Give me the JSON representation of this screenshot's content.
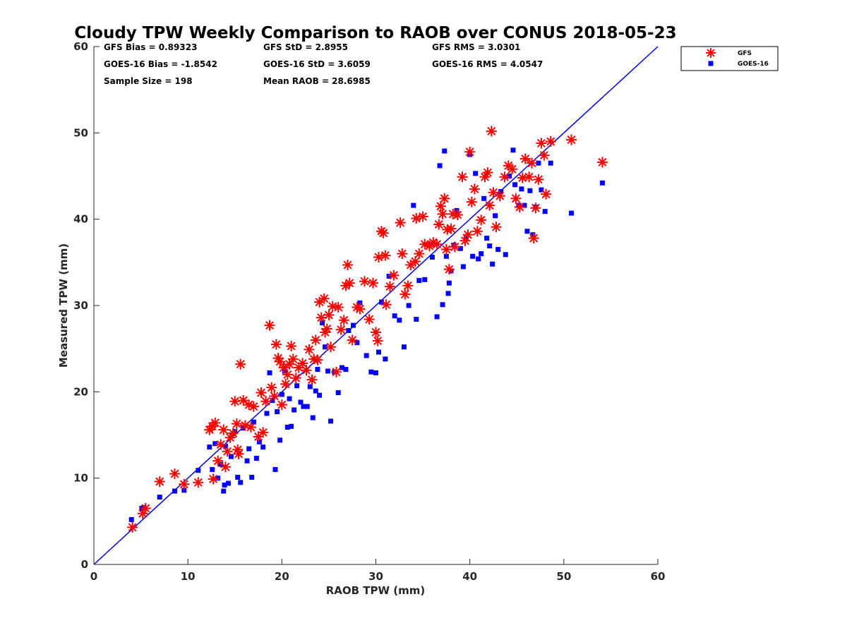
{
  "chart_data": {
    "type": "scatter",
    "title": "Cloudy TPW Weekly Comparison to RAOB over CONUS 2018-05-23",
    "xlabel": "RAOB TPW (mm)",
    "ylabel": "Measured TPW (mm)",
    "xlim": [
      0,
      60
    ],
    "ylim": [
      0,
      60
    ],
    "xticks": [
      0,
      10,
      20,
      30,
      40,
      50,
      60
    ],
    "yticks": [
      0,
      10,
      20,
      30,
      40,
      50,
      60
    ],
    "grid": false,
    "legend_position": "top-right (outside plot)",
    "reference_line": {
      "type": "one-to-one",
      "from": [
        0,
        0
      ],
      "to": [
        60,
        60
      ],
      "color": "#0000ee"
    },
    "stats": [
      "GFS Bias = 0.89323",
      "GFS StD = 2.8955",
      "GFS RMS = 3.0301",
      "GOES-16 Bias = -1.8542",
      "GOES-16 StD = 3.6059",
      "GOES-16 RMS = 4.0547",
      "Sample Size = 198",
      "Mean RAOB = 28.6985"
    ],
    "series": [
      {
        "name": "GFS",
        "marker": "asterisk",
        "color": "#ff0000",
        "points": [
          [
            4.1,
            4.3
          ],
          [
            5.2,
            5.9
          ],
          [
            5.5,
            6.5
          ],
          [
            7.0,
            9.6
          ],
          [
            8.6,
            10.5
          ],
          [
            9.6,
            9.3
          ],
          [
            11.1,
            9.5
          ],
          [
            12.3,
            15.6
          ],
          [
            12.6,
            16.0
          ],
          [
            12.9,
            16.4
          ],
          [
            12.7,
            9.9
          ],
          [
            13.2,
            12.0
          ],
          [
            13.5,
            13.9
          ],
          [
            13.8,
            15.6
          ],
          [
            14.0,
            11.3
          ],
          [
            14.2,
            13.1
          ],
          [
            14.5,
            14.7
          ],
          [
            14.8,
            15.2
          ],
          [
            15.0,
            18.9
          ],
          [
            15.2,
            16.3
          ],
          [
            15.3,
            13.3
          ],
          [
            15.4,
            12.8
          ],
          [
            15.6,
            23.2
          ],
          [
            15.9,
            19.0
          ],
          [
            16.1,
            16.1
          ],
          [
            16.5,
            18.5
          ],
          [
            16.7,
            15.9
          ],
          [
            17.0,
            18.3
          ],
          [
            17.5,
            14.8
          ],
          [
            17.8,
            19.9
          ],
          [
            18.0,
            15.3
          ],
          [
            18.3,
            18.9
          ],
          [
            18.7,
            27.7
          ],
          [
            18.9,
            20.5
          ],
          [
            19.2,
            19.5
          ],
          [
            19.4,
            25.5
          ],
          [
            19.6,
            23.9
          ],
          [
            19.8,
            23.5
          ],
          [
            20.0,
            18.5
          ],
          [
            20.2,
            22.8
          ],
          [
            20.4,
            20.9
          ],
          [
            20.6,
            22.0
          ],
          [
            20.8,
            23.2
          ],
          [
            21.0,
            25.3
          ],
          [
            21.2,
            23.8
          ],
          [
            21.5,
            21.6
          ],
          [
            21.8,
            22.8
          ],
          [
            22.2,
            23.3
          ],
          [
            22.6,
            22.5
          ],
          [
            22.9,
            24.9
          ],
          [
            23.2,
            21.4
          ],
          [
            23.4,
            23.8
          ],
          [
            23.6,
            26.0
          ],
          [
            23.8,
            23.7
          ],
          [
            24.0,
            30.4
          ],
          [
            24.2,
            28.6
          ],
          [
            24.5,
            30.8
          ],
          [
            24.6,
            26.9
          ],
          [
            24.8,
            27.3
          ],
          [
            25.0,
            28.9
          ],
          [
            25.2,
            25.2
          ],
          [
            25.4,
            29.9
          ],
          [
            25.8,
            22.3
          ],
          [
            26.0,
            29.8
          ],
          [
            26.3,
            27.2
          ],
          [
            26.6,
            28.3
          ],
          [
            26.8,
            32.3
          ],
          [
            27.0,
            34.7
          ],
          [
            27.2,
            32.6
          ],
          [
            27.5,
            26.0
          ],
          [
            28.0,
            29.8
          ],
          [
            28.3,
            29.6
          ],
          [
            28.8,
            32.8
          ],
          [
            29.3,
            28.4
          ],
          [
            29.7,
            32.6
          ],
          [
            30.0,
            26.9
          ],
          [
            30.2,
            25.9
          ],
          [
            30.3,
            35.6
          ],
          [
            30.6,
            38.6
          ],
          [
            30.8,
            38.4
          ],
          [
            31.0,
            35.8
          ],
          [
            31.1,
            30.1
          ],
          [
            31.5,
            32.2
          ],
          [
            31.9,
            33.5
          ],
          [
            32.6,
            39.6
          ],
          [
            32.8,
            36.0
          ],
          [
            33.1,
            31.3
          ],
          [
            33.4,
            32.3
          ],
          [
            33.7,
            34.7
          ],
          [
            34.2,
            35.1
          ],
          [
            34.3,
            40.1
          ],
          [
            34.6,
            36.0
          ],
          [
            35.0,
            40.3
          ],
          [
            35.2,
            37.1
          ],
          [
            35.7,
            36.9
          ],
          [
            36.1,
            37.3
          ],
          [
            36.5,
            37.1
          ],
          [
            36.7,
            39.4
          ],
          [
            36.9,
            41.5
          ],
          [
            37.1,
            40.6
          ],
          [
            37.3,
            42.4
          ],
          [
            37.5,
            36.5
          ],
          [
            37.6,
            38.8
          ],
          [
            37.8,
            34.2
          ],
          [
            38.0,
            38.9
          ],
          [
            38.2,
            40.6
          ],
          [
            38.4,
            36.8
          ],
          [
            38.7,
            40.5
          ],
          [
            39.2,
            44.9
          ],
          [
            39.5,
            37.5
          ],
          [
            39.8,
            38.2
          ],
          [
            40.0,
            47.8
          ],
          [
            40.2,
            42.0
          ],
          [
            40.5,
            43.5
          ],
          [
            40.8,
            38.6
          ],
          [
            41.2,
            39.9
          ],
          [
            41.6,
            44.9
          ],
          [
            41.9,
            45.4
          ],
          [
            42.1,
            41.6
          ],
          [
            42.3,
            50.2
          ],
          [
            42.5,
            43.1
          ],
          [
            42.8,
            39.1
          ],
          [
            43.2,
            42.7
          ],
          [
            43.7,
            44.9
          ],
          [
            44.1,
            46.2
          ],
          [
            44.5,
            45.8
          ],
          [
            44.9,
            42.4
          ],
          [
            45.3,
            41.4
          ],
          [
            45.6,
            44.8
          ],
          [
            45.9,
            47.0
          ],
          [
            46.3,
            44.9
          ],
          [
            46.6,
            46.5
          ],
          [
            46.8,
            37.8
          ],
          [
            47.0,
            41.3
          ],
          [
            47.3,
            44.6
          ],
          [
            47.6,
            48.8
          ],
          [
            47.9,
            47.4
          ],
          [
            48.1,
            42.9
          ],
          [
            48.6,
            49.0
          ],
          [
            50.8,
            49.2
          ],
          [
            54.1,
            46.6
          ]
        ]
      },
      {
        "name": "GOES-16",
        "marker": "square",
        "color": "#0000ff",
        "points": [
          [
            4.0,
            5.2
          ],
          [
            5.1,
            6.5
          ],
          [
            5.3,
            6.6
          ],
          [
            7.0,
            7.8
          ],
          [
            8.6,
            8.5
          ],
          [
            9.6,
            8.6
          ],
          [
            11.1,
            10.9
          ],
          [
            12.3,
            13.6
          ],
          [
            12.6,
            11.0
          ],
          [
            12.9,
            14.0
          ],
          [
            13.2,
            10.0
          ],
          [
            13.5,
            11.6
          ],
          [
            13.8,
            8.5
          ],
          [
            13.9,
            9.2
          ],
          [
            14.0,
            13.7
          ],
          [
            14.3,
            9.4
          ],
          [
            14.6,
            12.5
          ],
          [
            15.0,
            15.4
          ],
          [
            15.3,
            10.1
          ],
          [
            15.6,
            9.5
          ],
          [
            15.9,
            15.8
          ],
          [
            16.3,
            12.0
          ],
          [
            16.5,
            13.4
          ],
          [
            16.8,
            10.1
          ],
          [
            17.0,
            16.5
          ],
          [
            17.3,
            12.3
          ],
          [
            17.6,
            14.2
          ],
          [
            18.0,
            13.6
          ],
          [
            18.4,
            17.5
          ],
          [
            18.7,
            22.2
          ],
          [
            19.0,
            19.0
          ],
          [
            19.3,
            11.0
          ],
          [
            19.5,
            17.7
          ],
          [
            19.8,
            14.4
          ],
          [
            20.0,
            19.7
          ],
          [
            20.3,
            22.4
          ],
          [
            20.6,
            15.9
          ],
          [
            20.8,
            19.2
          ],
          [
            21.0,
            16.0
          ],
          [
            21.3,
            17.9
          ],
          [
            21.6,
            20.7
          ],
          [
            22.0,
            18.8
          ],
          [
            22.3,
            18.3
          ],
          [
            22.7,
            18.3
          ],
          [
            23.0,
            20.6
          ],
          [
            23.3,
            17.0
          ],
          [
            23.6,
            20.1
          ],
          [
            23.8,
            22.6
          ],
          [
            24.0,
            19.6
          ],
          [
            24.3,
            28.0
          ],
          [
            24.6,
            25.2
          ],
          [
            24.9,
            22.4
          ],
          [
            25.2,
            16.6
          ],
          [
            25.6,
            22.3
          ],
          [
            26.0,
            19.9
          ],
          [
            26.4,
            22.8
          ],
          [
            26.8,
            22.6
          ],
          [
            27.1,
            27.1
          ],
          [
            27.6,
            27.7
          ],
          [
            28.0,
            25.7
          ],
          [
            28.3,
            30.3
          ],
          [
            29.0,
            24.2
          ],
          [
            29.5,
            22.3
          ],
          [
            30.0,
            22.2
          ],
          [
            30.3,
            24.6
          ],
          [
            30.6,
            30.4
          ],
          [
            31.0,
            23.8
          ],
          [
            31.4,
            33.4
          ],
          [
            32.0,
            28.8
          ],
          [
            32.5,
            28.3
          ],
          [
            33.0,
            25.2
          ],
          [
            33.5,
            30.0
          ],
          [
            34.0,
            41.6
          ],
          [
            34.3,
            28.4
          ],
          [
            34.6,
            32.9
          ],
          [
            35.2,
            33.0
          ],
          [
            35.6,
            37.0
          ],
          [
            36.0,
            35.6
          ],
          [
            36.5,
            28.7
          ],
          [
            36.8,
            46.2
          ],
          [
            37.1,
            30.1
          ],
          [
            37.3,
            47.9
          ],
          [
            37.5,
            35.7
          ],
          [
            37.7,
            31.4
          ],
          [
            37.8,
            32.6
          ],
          [
            38.0,
            34.0
          ],
          [
            38.3,
            37.0
          ],
          [
            38.6,
            41.0
          ],
          [
            39.0,
            36.6
          ],
          [
            39.3,
            34.5
          ],
          [
            39.6,
            37.8
          ],
          [
            40.0,
            47.5
          ],
          [
            40.3,
            35.7
          ],
          [
            40.6,
            45.3
          ],
          [
            40.9,
            35.4
          ],
          [
            41.2,
            36.0
          ],
          [
            41.5,
            42.4
          ],
          [
            41.8,
            37.8
          ],
          [
            42.1,
            36.9
          ],
          [
            42.4,
            34.8
          ],
          [
            42.7,
            40.4
          ],
          [
            43.0,
            36.5
          ],
          [
            43.3,
            43.2
          ],
          [
            43.8,
            35.9
          ],
          [
            44.2,
            45.0
          ],
          [
            44.6,
            48.0
          ],
          [
            44.8,
            44.0
          ],
          [
            45.2,
            41.6
          ],
          [
            45.5,
            43.5
          ],
          [
            45.8,
            41.6
          ],
          [
            46.1,
            38.6
          ],
          [
            46.4,
            43.3
          ],
          [
            46.7,
            38.2
          ],
          [
            47.0,
            41.4
          ],
          [
            47.3,
            46.5
          ],
          [
            47.6,
            43.4
          ],
          [
            48.0,
            40.9
          ],
          [
            48.6,
            46.5
          ],
          [
            50.8,
            40.7
          ],
          [
            54.1,
            44.2
          ]
        ]
      }
    ]
  }
}
